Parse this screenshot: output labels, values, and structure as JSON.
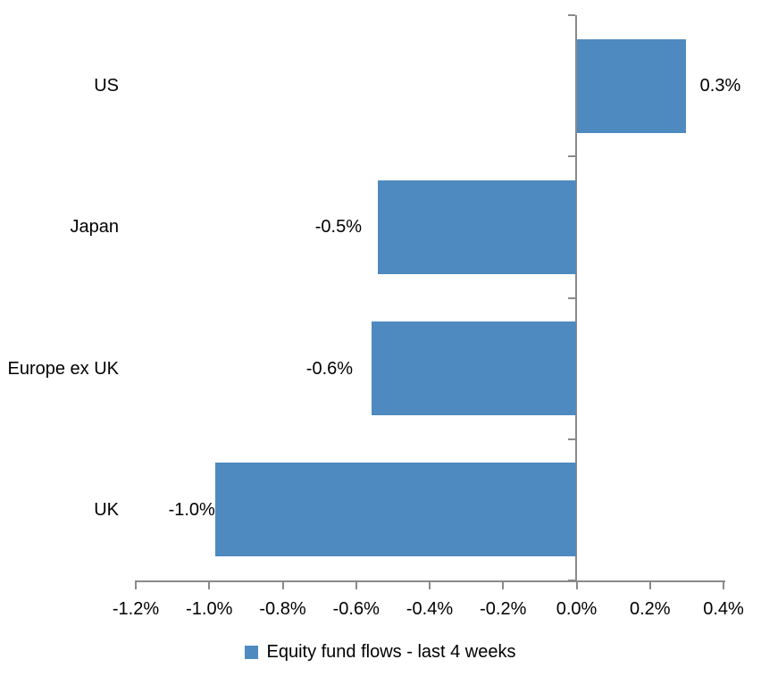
{
  "chart_data": {
    "type": "bar",
    "orientation": "horizontal",
    "title": "",
    "categories": [
      "US",
      "Japan",
      "Europe ex UK",
      "UK"
    ],
    "values": [
      0.3,
      -0.5,
      -0.6,
      -1.0
    ],
    "values_precise_pct": [
      0.297,
      -0.541,
      -0.558,
      -0.984
    ],
    "data_labels": [
      "0.3%",
      "-0.5%",
      "-0.6%",
      "-1.0%"
    ],
    "x_ticks": [
      "-1.2%",
      "-1.0%",
      "-0.8%",
      "-0.6%",
      "-0.4%",
      "-0.2%",
      "0.0%",
      "0.2%",
      "0.4%"
    ],
    "x_tick_values": [
      -1.2,
      -1.0,
      -0.8,
      -0.6,
      -0.4,
      -0.2,
      0.0,
      0.2,
      0.4
    ],
    "xlim": [
      -1.2,
      0.4
    ],
    "grid": false,
    "bar_color": "#4E8AC0",
    "axis_color": "#8A8A8A",
    "text_color": "#000000",
    "legend": {
      "label": "Equity fund flows - last 4 weeks",
      "swatch_color": "#4E8AC0",
      "position": "bottom-center"
    }
  }
}
